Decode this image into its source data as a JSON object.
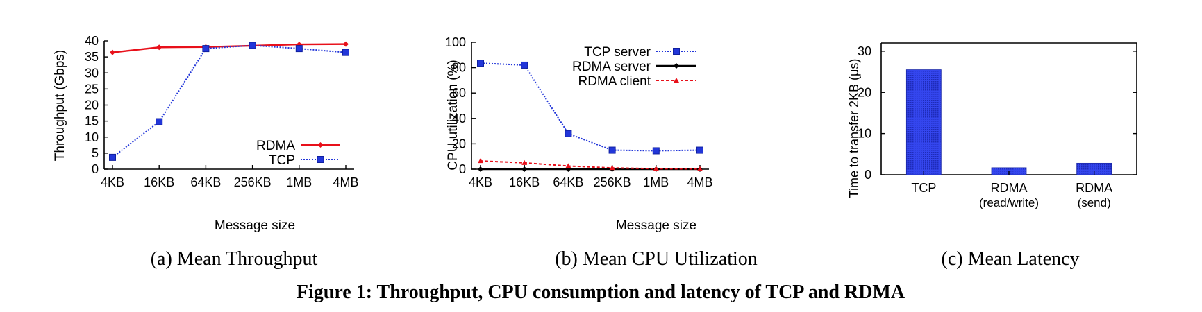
{
  "figure": {
    "caption": "Figure 1: Throughput, CPU consumption and latency of TCP and RDMA"
  },
  "colors": {
    "rdma_red": "#e8101a",
    "tcp_blue": "#2236d9",
    "tcp_fill": "#3040e8",
    "black": "#000000"
  },
  "chart_data": [
    {
      "id": "a",
      "type": "line",
      "subcaption": "(a) Mean Throughput",
      "xlabel": "Message size",
      "ylabel": "Throughput (Gbps)",
      "categories": [
        "4KB",
        "16KB",
        "64KB",
        "256KB",
        "1MB",
        "4MB"
      ],
      "ylim": [
        0,
        40
      ],
      "yticks": [
        0,
        5,
        10,
        15,
        20,
        25,
        30,
        35,
        40
      ],
      "legend_position": "bottom-right",
      "series": [
        {
          "name": "RDMA",
          "style": "solid",
          "marker": "diamond",
          "color_key": "rdma_red",
          "values": [
            36.4,
            38.0,
            38.1,
            38.5,
            38.9,
            39.0
          ]
        },
        {
          "name": "TCP",
          "style": "dotted",
          "marker": "square",
          "color_key": "tcp_blue",
          "values": [
            3.7,
            14.8,
            37.6,
            38.6,
            37.6,
            36.4
          ]
        }
      ]
    },
    {
      "id": "b",
      "type": "line",
      "subcaption": "(b) Mean CPU Utilization",
      "xlabel": "Message size",
      "ylabel": "CPU utilization (%)",
      "categories": [
        "4KB",
        "16KB",
        "64KB",
        "256KB",
        "1MB",
        "4MB"
      ],
      "ylim": [
        0,
        100
      ],
      "yticks": [
        0,
        20,
        40,
        60,
        80,
        100
      ],
      "legend_position": "top-right",
      "series": [
        {
          "name": "TCP server",
          "style": "dotted",
          "marker": "square",
          "color_key": "tcp_blue",
          "values": [
            83.5,
            82.0,
            28.0,
            15.0,
            14.5,
            15.0
          ]
        },
        {
          "name": "RDMA server",
          "style": "solid",
          "marker": "diamond",
          "color_key": "black",
          "values": [
            0.0,
            0.0,
            0.0,
            0.0,
            0.0,
            0.0
          ]
        },
        {
          "name": "RDMA client",
          "style": "dashed",
          "marker": "triangle",
          "color_key": "rdma_red",
          "values": [
            6.5,
            5.0,
            2.5,
            1.0,
            0.4,
            0.2
          ]
        }
      ]
    },
    {
      "id": "c",
      "type": "bar",
      "subcaption": "(c) Mean Latency",
      "xlabel": "",
      "ylabel": "Time to transfer 2KB (μs)",
      "categories": [
        {
          "line1": "TCP",
          "line2": ""
        },
        {
          "line1": "RDMA",
          "line2": "(read/write)"
        },
        {
          "line1": "RDMA",
          "line2": "(send)"
        }
      ],
      "ylim": [
        0,
        32
      ],
      "yticks": [
        0,
        10,
        20,
        30
      ],
      "values": [
        25.5,
        1.7,
        2.8
      ]
    }
  ]
}
